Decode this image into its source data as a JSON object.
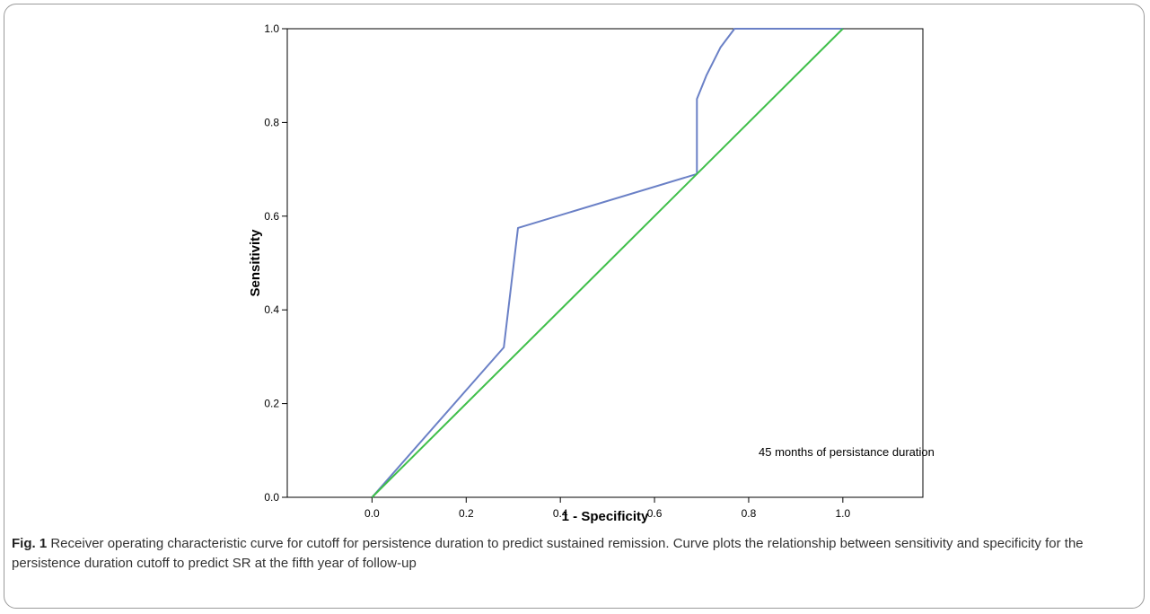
{
  "chart_data": {
    "type": "line",
    "title": "",
    "xlabel": "1 - Specificity",
    "ylabel": "Sensitivity",
    "xlim": [
      -0.18,
      1.17
    ],
    "ylim": [
      0.0,
      1.0
    ],
    "x_ticks": [
      "0.0",
      "0.2",
      "0.4",
      "0.6",
      "0.8",
      "1.0"
    ],
    "y_ticks": [
      "0.0",
      "0.2",
      "0.4",
      "0.6",
      "0.8",
      "1.0"
    ],
    "grid": false,
    "annotation": "45 months of persistance duration",
    "series": [
      {
        "color": "#6a80c6",
        "x": [
          0.0,
          0.28,
          0.31,
          0.69,
          0.69,
          0.71,
          0.74,
          0.77,
          1.0
        ],
        "y": [
          0.0,
          0.32,
          0.575,
          0.69,
          0.85,
          0.9,
          0.96,
          1.0,
          1.0
        ]
      },
      {
        "color": "#3fbf4a",
        "x": [
          0.0,
          1.0
        ],
        "y": [
          0.0,
          1.0
        ]
      }
    ]
  },
  "caption": {
    "label": "Fig. 1",
    "text": " Receiver operating characteristic curve for cutoff for persistence duration to predict sustained remission. Curve plots the relationship between sensitivity and specificity for the persistence duration cutoff to predict SR at the fifth year of follow-up"
  }
}
